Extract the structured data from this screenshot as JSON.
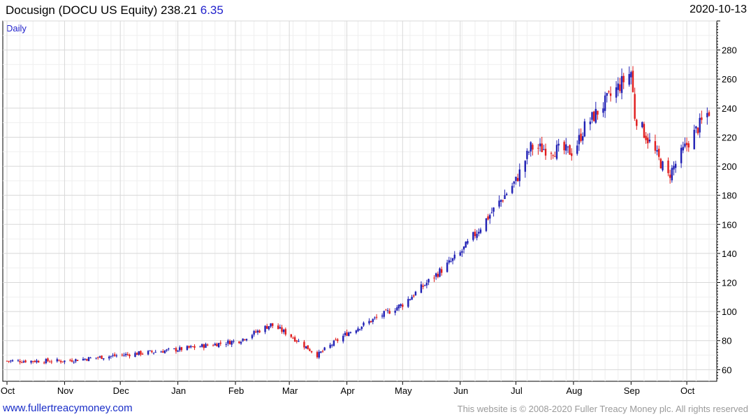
{
  "header": {
    "title": "Docusign (DOCU US Equity)",
    "price": "238.21",
    "change": "6.35",
    "date": "2020-10-13"
  },
  "footer": {
    "site_link": "www.fullertreacymoney.com",
    "copyright": "This website is © 2008-2020 Fuller Treacy Money plc. All rights reserved"
  },
  "colors": {
    "up": "#1f1fb4",
    "down": "#e01b1b",
    "grid": "#d8d8d8",
    "title_change": "#2222cc",
    "link": "#1a2ec8"
  },
  "chart_data": {
    "type": "candlestick",
    "period_label": "Daily",
    "x_labels": [
      "Oct",
      "Nov",
      "Dec",
      "Jan",
      "Feb",
      "Mar",
      "Apr",
      "May",
      "Jun",
      "Jul",
      "Aug",
      "Sep",
      "Oct"
    ],
    "y_ticks": [
      60,
      80,
      100,
      120,
      140,
      160,
      180,
      200,
      220,
      240,
      260,
      280
    ],
    "ylim": [
      52,
      300
    ],
    "y_axis_side": "right",
    "grid": true,
    "x_range": [
      "2019-10-01",
      "2020-10-13"
    ],
    "key_points": [
      {
        "date": "2019-10-01",
        "close": 66
      },
      {
        "date": "2019-11-01",
        "close": 66
      },
      {
        "date": "2019-12-01",
        "close": 70
      },
      {
        "date": "2020-01-02",
        "close": 74
      },
      {
        "date": "2020-02-03",
        "close": 80
      },
      {
        "date": "2020-02-20",
        "close": 91
      },
      {
        "date": "2020-03-01",
        "close": 84
      },
      {
        "date": "2020-03-16",
        "close": 70
      },
      {
        "date": "2020-04-01",
        "close": 85
      },
      {
        "date": "2020-05-01",
        "close": 105
      },
      {
        "date": "2020-06-01",
        "close": 140
      },
      {
        "date": "2020-07-01",
        "close": 190
      },
      {
        "date": "2020-07-09",
        "close": 213
      },
      {
        "date": "2020-08-01",
        "close": 210
      },
      {
        "date": "2020-08-07",
        "close": 227
      },
      {
        "date": "2020-09-01",
        "close": 265
      },
      {
        "date": "2020-09-03",
        "close": 235
      },
      {
        "date": "2020-09-21",
        "close": 193
      },
      {
        "date": "2020-10-01",
        "close": 215
      },
      {
        "date": "2020-10-13",
        "close": 238
      }
    ]
  }
}
